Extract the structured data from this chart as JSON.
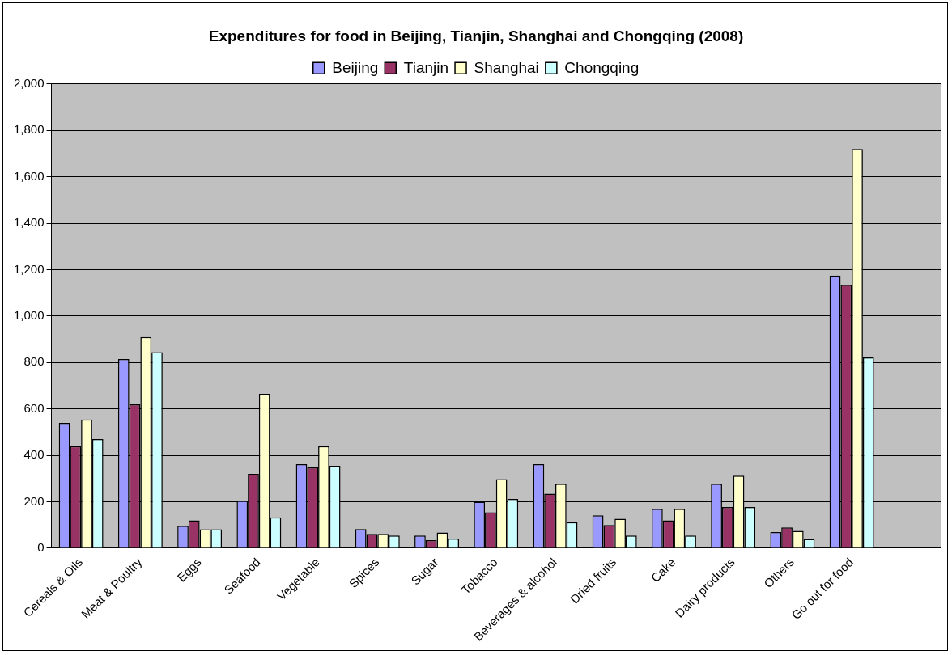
{
  "chart_data": {
    "type": "bar",
    "title": "Expenditures for food in Beijing, Tianjin, Shanghai and Chongqing (2008)",
    "categories": [
      "Cereals & Oils",
      "Meat & Poultry",
      "Eggs",
      "Seafood",
      "Vegetable",
      "Spices",
      "Sugar",
      "Tobacco",
      "Beverages & alcohol",
      "Dried fruits",
      "Cake",
      "Dairy products",
      "Others",
      "Go out for food",
      null
    ],
    "series": [
      {
        "name": "Beijing",
        "color": "#9999ff",
        "values": [
          540,
          815,
          97,
          205,
          362,
          83,
          55,
          200,
          362,
          142,
          170,
          278,
          70,
          1175,
          null
        ]
      },
      {
        "name": "Tianjin",
        "color": "#993366",
        "values": [
          440,
          620,
          120,
          320,
          348,
          62,
          35,
          155,
          235,
          100,
          120,
          178,
          90,
          1135,
          null
        ]
      },
      {
        "name": "Shanghai",
        "color": "#ffffcc",
        "values": [
          555,
          910,
          82,
          665,
          440,
          62,
          68,
          298,
          278,
          127,
          170,
          313,
          75,
          1720,
          null
        ]
      },
      {
        "name": "Chongqing",
        "color": "#ccffff",
        "values": [
          470,
          845,
          82,
          133,
          355,
          55,
          42,
          212,
          112,
          55,
          55,
          178,
          40,
          822,
          null
        ]
      }
    ],
    "ylim": [
      0,
      2000
    ],
    "yticks": [
      {
        "value": 0,
        "label": "0"
      },
      {
        "value": 200,
        "label": "200"
      },
      {
        "value": 400,
        "label": "400"
      },
      {
        "value": 600,
        "label": "600"
      },
      {
        "value": 800,
        "label": "800"
      },
      {
        "value": 1000,
        "label": "1,000"
      },
      {
        "value": 1200,
        "label": "1,200"
      },
      {
        "value": 1400,
        "label": "1,400"
      },
      {
        "value": 1600,
        "label": "1,600"
      },
      {
        "value": 1800,
        "label": "1,800"
      },
      {
        "value": 2000,
        "label": "2,000"
      }
    ],
    "grid": "y",
    "legend": "top"
  }
}
